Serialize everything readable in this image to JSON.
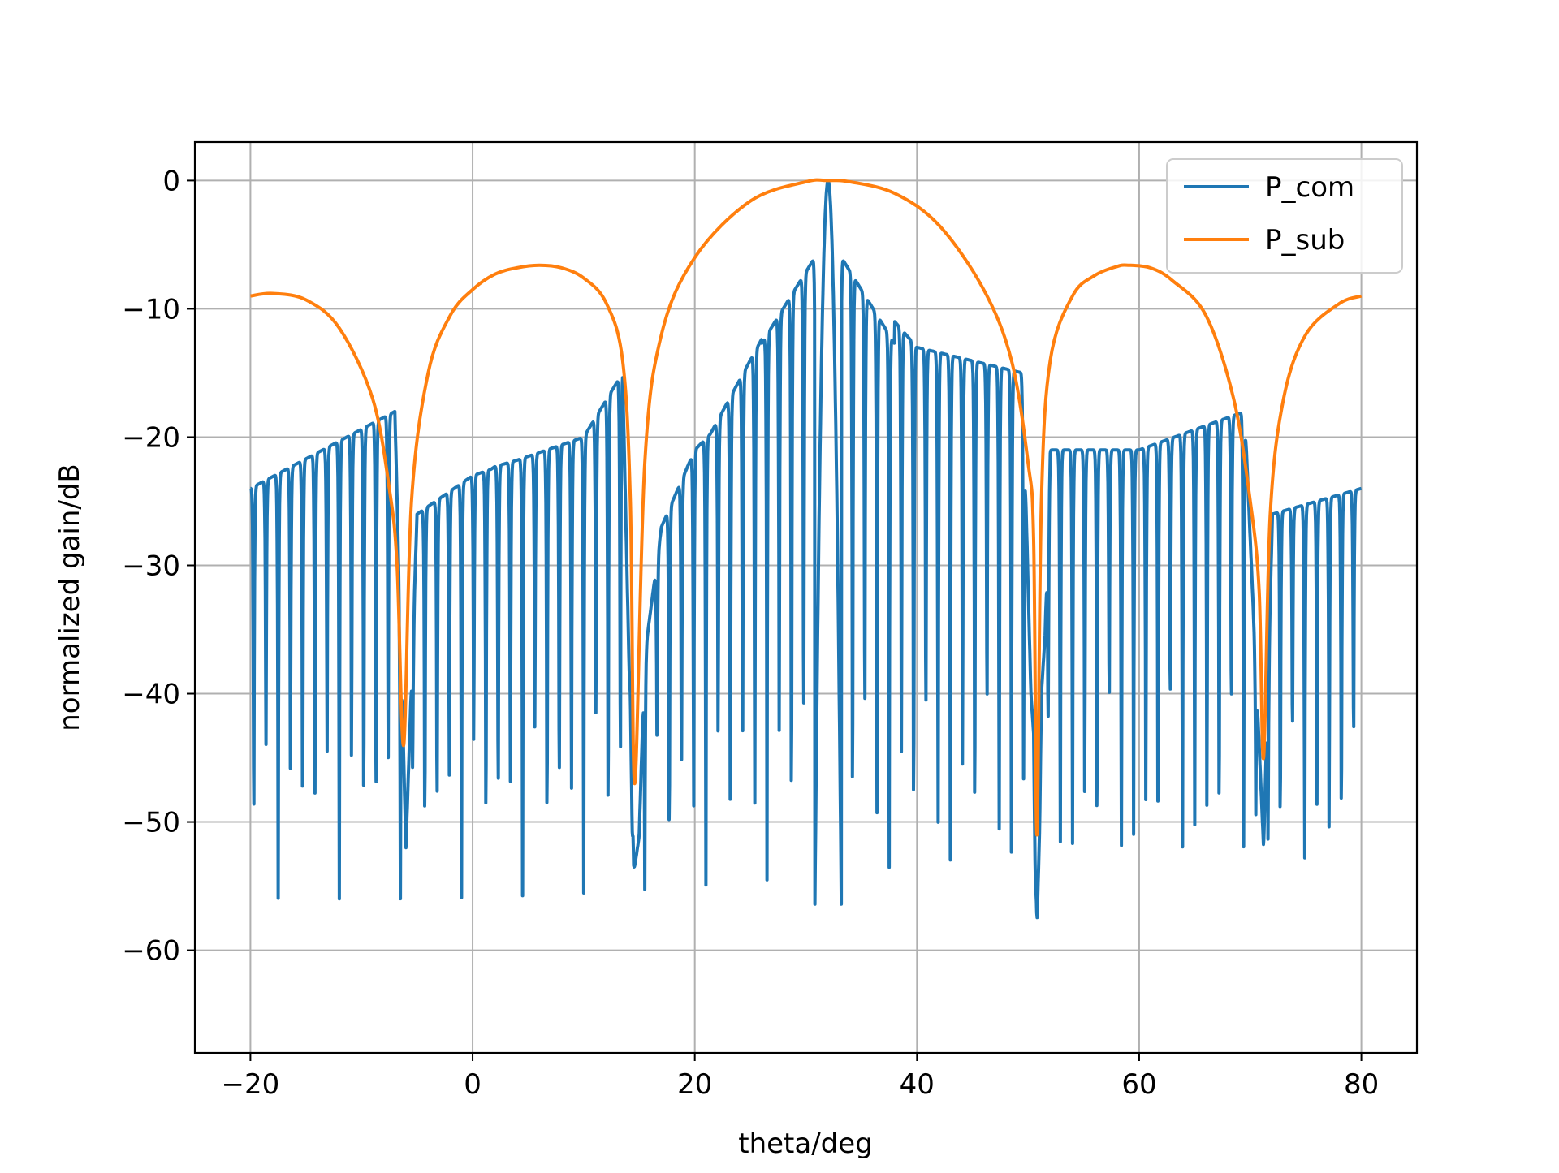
{
  "chart_data": {
    "type": "line",
    "title": "",
    "xlabel": "theta/deg",
    "ylabel": "normalized gain/dB",
    "xlim": [
      -25,
      85
    ],
    "ylim": [
      -68,
      3
    ],
    "xticks": [
      -20,
      0,
      20,
      40,
      60,
      80
    ],
    "yticks": [
      0,
      -10,
      -20,
      -30,
      -40,
      -50,
      -60
    ],
    "xtick_labels": [
      "−20",
      "0",
      "20",
      "40",
      "60",
      "80"
    ],
    "ytick_labels": [
      "0",
      "−10",
      "−20",
      "−30",
      "−40",
      "−50",
      "−60"
    ],
    "grid": true,
    "legend_position": "top-right",
    "main_beam_deg": 32,
    "series": [
      {
        "name": "P_com",
        "color": "#1f77b4",
        "description_points": {
          "x": [
            -20,
            -7,
            -6,
            -5,
            0,
            10,
            13.5,
            14.5,
            20,
            30,
            32,
            34,
            40,
            49.5,
            50.8,
            52,
            60,
            69.5,
            71.2,
            72,
            80
          ],
          "y": [
            -24,
            -18,
            -52,
            -26,
            -23,
            -20,
            -15,
            -54,
            -22,
            -6,
            0,
            -7,
            -13,
            -15,
            -58,
            -21,
            -21,
            -18,
            -52,
            -26,
            -24
          ]
        }
      },
      {
        "name": "P_sub",
        "color": "#ff7f0e",
        "x": [
          -20,
          -18,
          -15,
          -12,
          -9,
          -7.5,
          -6.8,
          -6.2,
          -5.5,
          -4,
          -2,
          0,
          2,
          4,
          6,
          8,
          10,
          12,
          13.5,
          14.2,
          14.6,
          15.5,
          17,
          20,
          25,
          30,
          32,
          34,
          38,
          42,
          46,
          48.5,
          50,
          50.5,
          50.8,
          51.2,
          52,
          54,
          56,
          58,
          59,
          61,
          63,
          66,
          68.5,
          70,
          70.8,
          71.2,
          71.8,
          73,
          75,
          78,
          80
        ],
        "y": [
          -9,
          -8.8,
          -9.3,
          -11.5,
          -17,
          -24,
          -30,
          -44,
          -25,
          -15,
          -10.5,
          -8.5,
          -7.3,
          -6.8,
          -6.6,
          -6.8,
          -7.6,
          -9.5,
          -14,
          -25,
          -47,
          -22,
          -12,
          -6,
          -1.6,
          -0.1,
          0,
          -0.1,
          -1,
          -3.5,
          -8.5,
          -14,
          -22,
          -28,
          -51,
          -25,
          -14,
          -9,
          -7.4,
          -6.7,
          -6.6,
          -6.8,
          -7.8,
          -10.5,
          -17,
          -25,
          -32,
          -45,
          -26,
          -17,
          -12,
          -9.6,
          -9
        ]
      }
    ]
  }
}
